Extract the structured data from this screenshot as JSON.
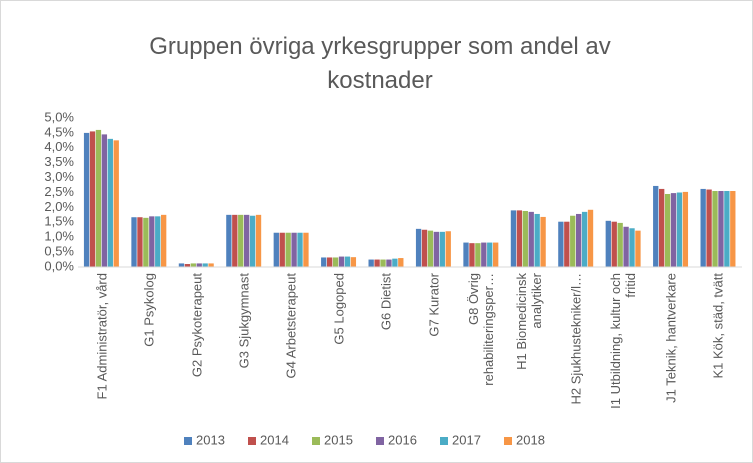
{
  "chart_data": {
    "type": "bar",
    "title": "Gruppen övriga yrkesgrupper som andel av kostnader",
    "categories": [
      "F1 Administratör, vård",
      "G1 Psykolog",
      "G2 Psykoterapeut",
      "G3 Sjukgymnast",
      "G4 Arbetsterapeut",
      "G5 Logoped",
      "G6 Dietist",
      "G7 Kurator",
      "G8 Övrig rehabiliteringsper…",
      "H1 Biomedicinsk analytiker",
      "H2 Sjukhustekniker/l…",
      "I1 Utbildning, kultur och fritid",
      "J1 Teknik, hantverkare",
      "K1 Kök, städ, tvätt"
    ],
    "series": [
      {
        "name": "2013",
        "color": "#4f81bd",
        "values": [
          4.5,
          1.67,
          0.12,
          1.75,
          1.15,
          0.32,
          0.25,
          1.28,
          0.82,
          1.9,
          1.52,
          1.55,
          2.72,
          2.62
        ]
      },
      {
        "name": "2014",
        "color": "#c0504d",
        "values": [
          4.55,
          1.67,
          0.1,
          1.75,
          1.15,
          0.32,
          0.25,
          1.25,
          0.8,
          1.9,
          1.52,
          1.52,
          2.62,
          2.6
        ]
      },
      {
        "name": "2015",
        "color": "#9bbb59",
        "values": [
          4.6,
          1.65,
          0.12,
          1.75,
          1.15,
          0.32,
          0.25,
          1.22,
          0.8,
          1.88,
          1.72,
          1.48,
          2.45,
          2.55
        ]
      },
      {
        "name": "2016",
        "color": "#8064a2",
        "values": [
          4.45,
          1.7,
          0.12,
          1.75,
          1.15,
          0.35,
          0.25,
          1.18,
          0.82,
          1.85,
          1.78,
          1.35,
          2.48,
          2.55
        ]
      },
      {
        "name": "2017",
        "color": "#4bacc6",
        "values": [
          4.3,
          1.7,
          0.12,
          1.72,
          1.15,
          0.35,
          0.28,
          1.18,
          0.82,
          1.78,
          1.85,
          1.3,
          2.5,
          2.55
        ]
      },
      {
        "name": "2018",
        "color": "#f79646",
        "values": [
          4.25,
          1.75,
          0.12,
          1.75,
          1.15,
          0.33,
          0.3,
          1.2,
          0.82,
          1.68,
          1.92,
          1.22,
          2.52,
          2.55
        ]
      }
    ],
    "ylim": [
      0,
      5
    ],
    "yticks": [
      {
        "value": 0,
        "label": "0,0%"
      },
      {
        "value": 0.5,
        "label": "0,5%"
      },
      {
        "value": 1,
        "label": "1,0%"
      },
      {
        "value": 1.5,
        "label": "1,5%"
      },
      {
        "value": 2,
        "label": "2,0%"
      },
      {
        "value": 2.5,
        "label": "2,5%"
      },
      {
        "value": 3,
        "label": "3,0%"
      },
      {
        "value": 3.5,
        "label": "3,5%"
      },
      {
        "value": 4,
        "label": "4,0%"
      },
      {
        "value": 4.5,
        "label": "4,5%"
      },
      {
        "value": 5,
        "label": "5,0%"
      }
    ],
    "legend": "bottom"
  }
}
